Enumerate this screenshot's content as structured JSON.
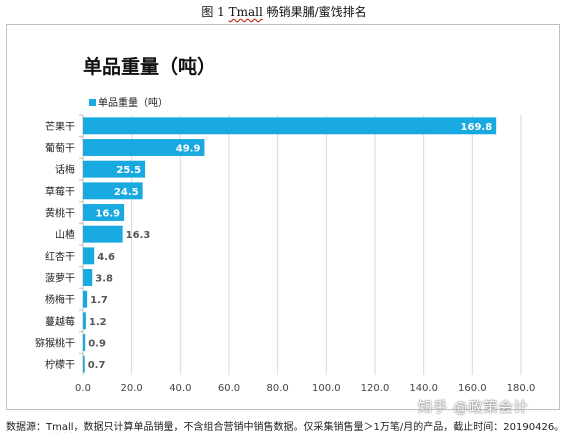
{
  "caption": {
    "prefix": "图  1   ",
    "app": "Tmall",
    "rest": " 畅销果脯/蜜饯排名"
  },
  "source_note": {
    "prefix": "数据源：",
    "app": "Tmall",
    "rest": "，数据只计算单品销量，不含组合营销中销售数据。仅采集销售量＞1万笔/月的产品，截止时间：20190426。"
  },
  "watermark": "知乎 @政策会计",
  "colors": {
    "bar": "#19a9e1",
    "grid": "#d9d9d9",
    "axis": "#bfbfbf"
  },
  "chart_data": {
    "type": "bar",
    "orientation": "horizontal",
    "title": "单品重量（吨）",
    "legend": {
      "label": "单品重量（吨）",
      "position": "top-left"
    },
    "categories": [
      "芒果干",
      "葡萄干",
      "话梅",
      "草莓干",
      "黄桃干",
      "山楂",
      "红杏干",
      "菠萝干",
      "杨梅干",
      "蔓越莓",
      "猕猴桃干",
      "柠檬干"
    ],
    "series": [
      {
        "name": "单品重量（吨）",
        "values": [
          169.8,
          49.9,
          25.5,
          24.5,
          16.9,
          16.3,
          4.6,
          3.8,
          1.7,
          1.2,
          0.9,
          0.7
        ]
      }
    ],
    "xlim": [
      0,
      180
    ],
    "xticks": [
      "0.0",
      "20.0",
      "40.0",
      "60.0",
      "80.0",
      "100.0",
      "120.0",
      "140.0",
      "160.0",
      "180.0"
    ],
    "grid": true,
    "data_labels": true
  }
}
